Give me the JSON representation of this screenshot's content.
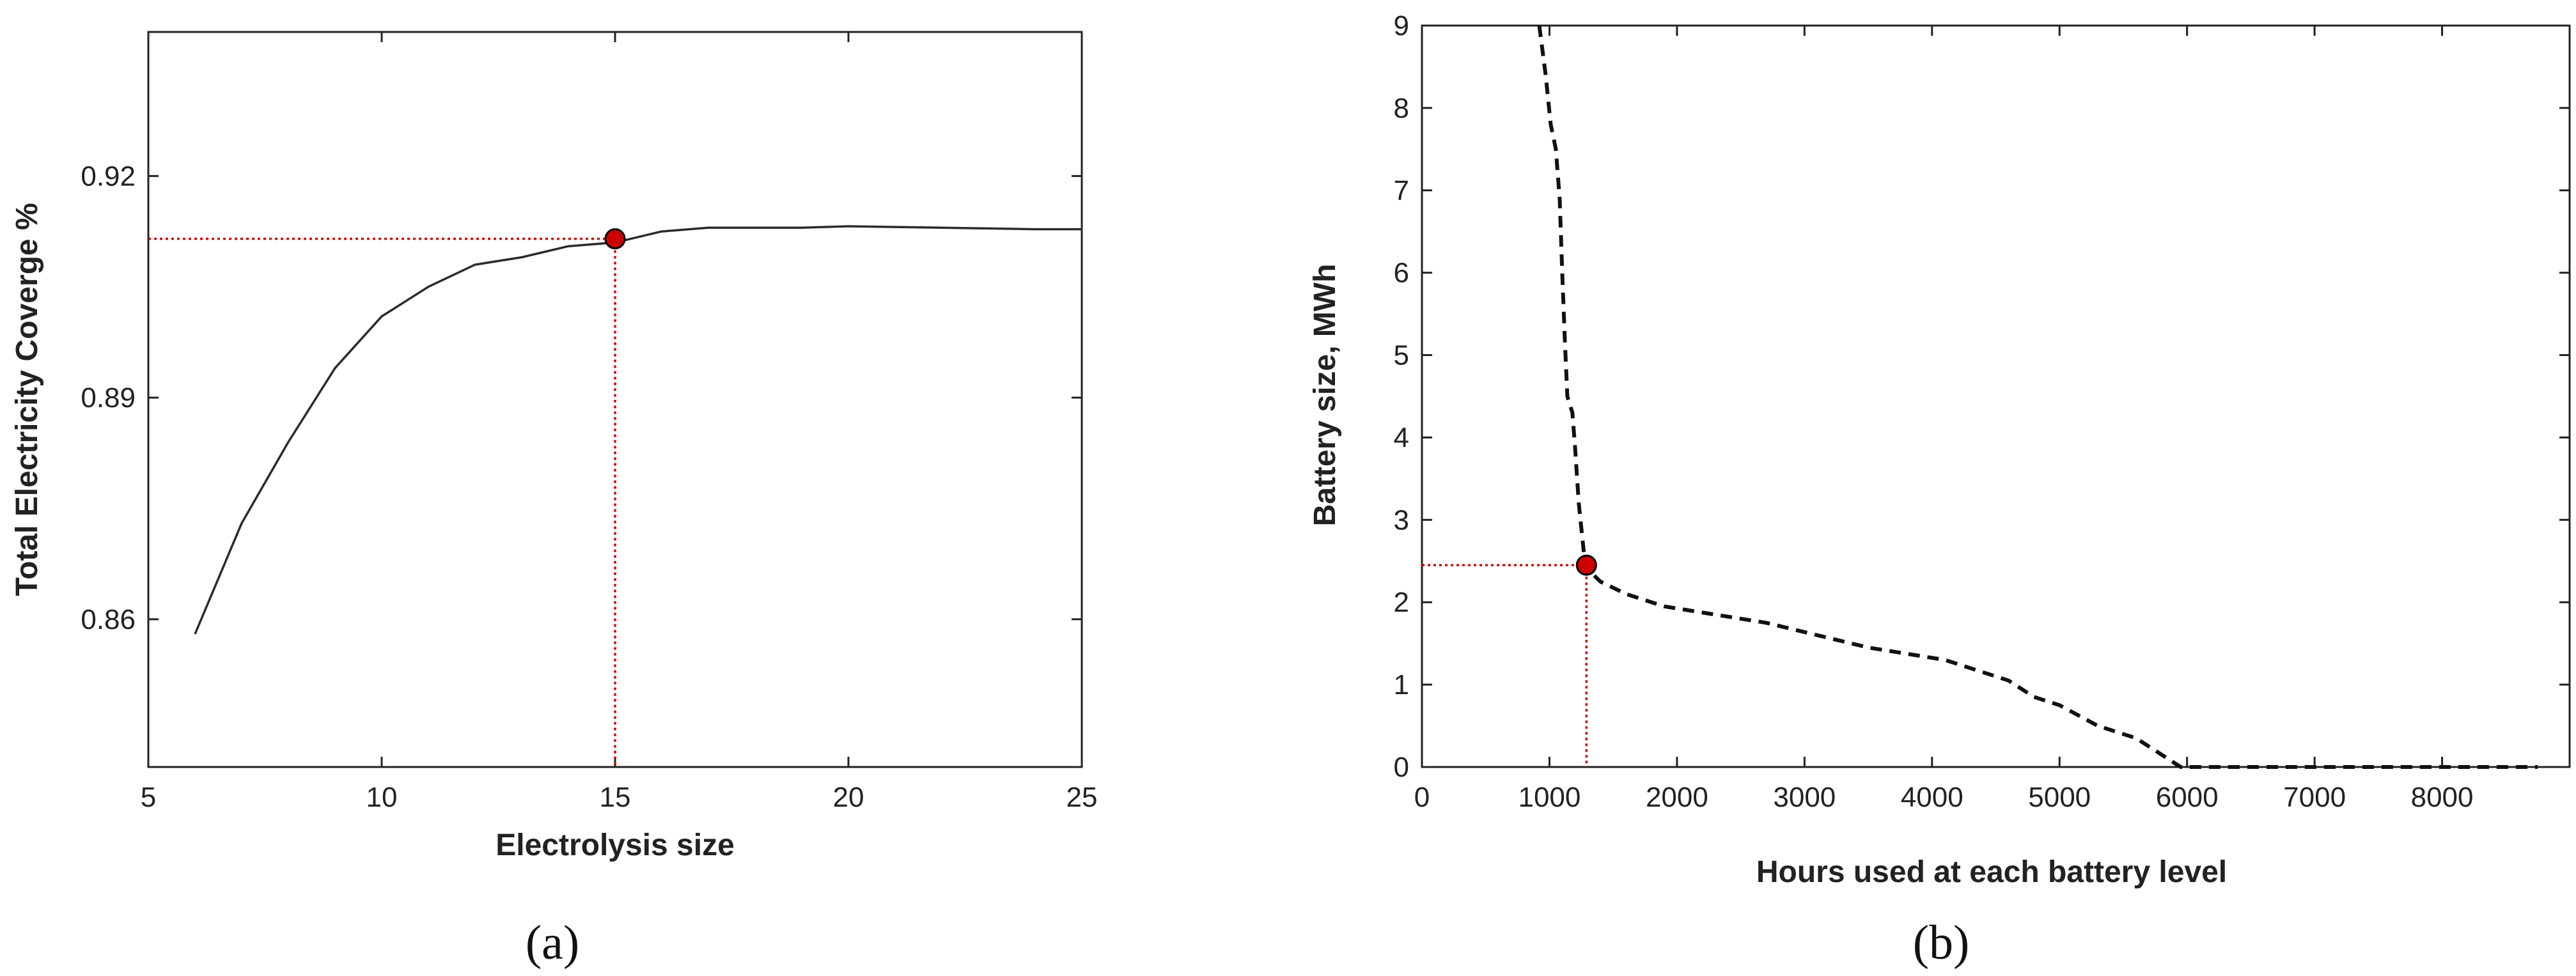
{
  "chart_data": [
    {
      "type": "line",
      "caption": "(a)",
      "xlabel": "Electrolysis size",
      "ylabel": "Total Electricity Coverge %",
      "xlim": [
        5,
        25
      ],
      "ylim": [
        0.84,
        0.9395
      ],
      "xticks": [
        5,
        10,
        15,
        20,
        25
      ],
      "yticks": [
        0.86,
        0.89,
        0.92
      ],
      "ytick_labels": [
        "0.86",
        "0.89",
        "0.92"
      ],
      "grid": false,
      "line_style": "solid",
      "line_color": "#2b2b2b",
      "x": [
        6,
        7,
        8,
        9,
        10,
        11,
        12,
        13,
        14,
        15,
        16,
        17,
        18,
        19,
        20,
        21,
        22,
        23,
        24,
        25
      ],
      "y": [
        0.858,
        0.873,
        0.884,
        0.894,
        0.901,
        0.905,
        0.908,
        0.909,
        0.9105,
        0.911,
        0.9125,
        0.913,
        0.913,
        0.913,
        0.9132,
        0.9131,
        0.913,
        0.9129,
        0.9128,
        0.9128
      ],
      "highlight": {
        "x": 15,
        "y": 0.9115,
        "color": "#cc0000"
      }
    },
    {
      "type": "line",
      "caption": "(b)",
      "xlabel": "Hours used at each battery level",
      "ylabel": "Battery size, MWh",
      "xlim": [
        0,
        9000
      ],
      "ylim": [
        0,
        9
      ],
      "xticks": [
        0,
        1000,
        2000,
        3000,
        4000,
        5000,
        6000,
        7000,
        8000
      ],
      "yticks": [
        0,
        1,
        2,
        3,
        4,
        5,
        6,
        7,
        8,
        9
      ],
      "grid": false,
      "line_style": "dashed",
      "line_color": "#111111",
      "x": [
        920,
        970,
        1010,
        1050,
        1080,
        1100,
        1120,
        1140,
        1180,
        1200,
        1230,
        1270,
        1300,
        1400,
        1600,
        1900,
        2300,
        2700,
        3100,
        3500,
        3900,
        4100,
        4400,
        4600,
        4800,
        5000,
        5300,
        5600,
        5800,
        5950,
        6200,
        6800,
        7500,
        8200,
        8750
      ],
      "y": [
        9.0,
        8.4,
        7.8,
        7.5,
        6.9,
        6.0,
        5.2,
        4.5,
        4.3,
        3.9,
        3.2,
        2.6,
        2.4,
        2.25,
        2.1,
        1.95,
        1.85,
        1.75,
        1.6,
        1.45,
        1.35,
        1.3,
        1.15,
        1.05,
        0.85,
        0.75,
        0.5,
        0.35,
        0.15,
        0.0,
        0.0,
        0.0,
        0.0,
        0.0,
        0.0
      ],
      "highlight": {
        "x": 1290,
        "y": 2.45,
        "color": "#cc0000"
      }
    }
  ]
}
